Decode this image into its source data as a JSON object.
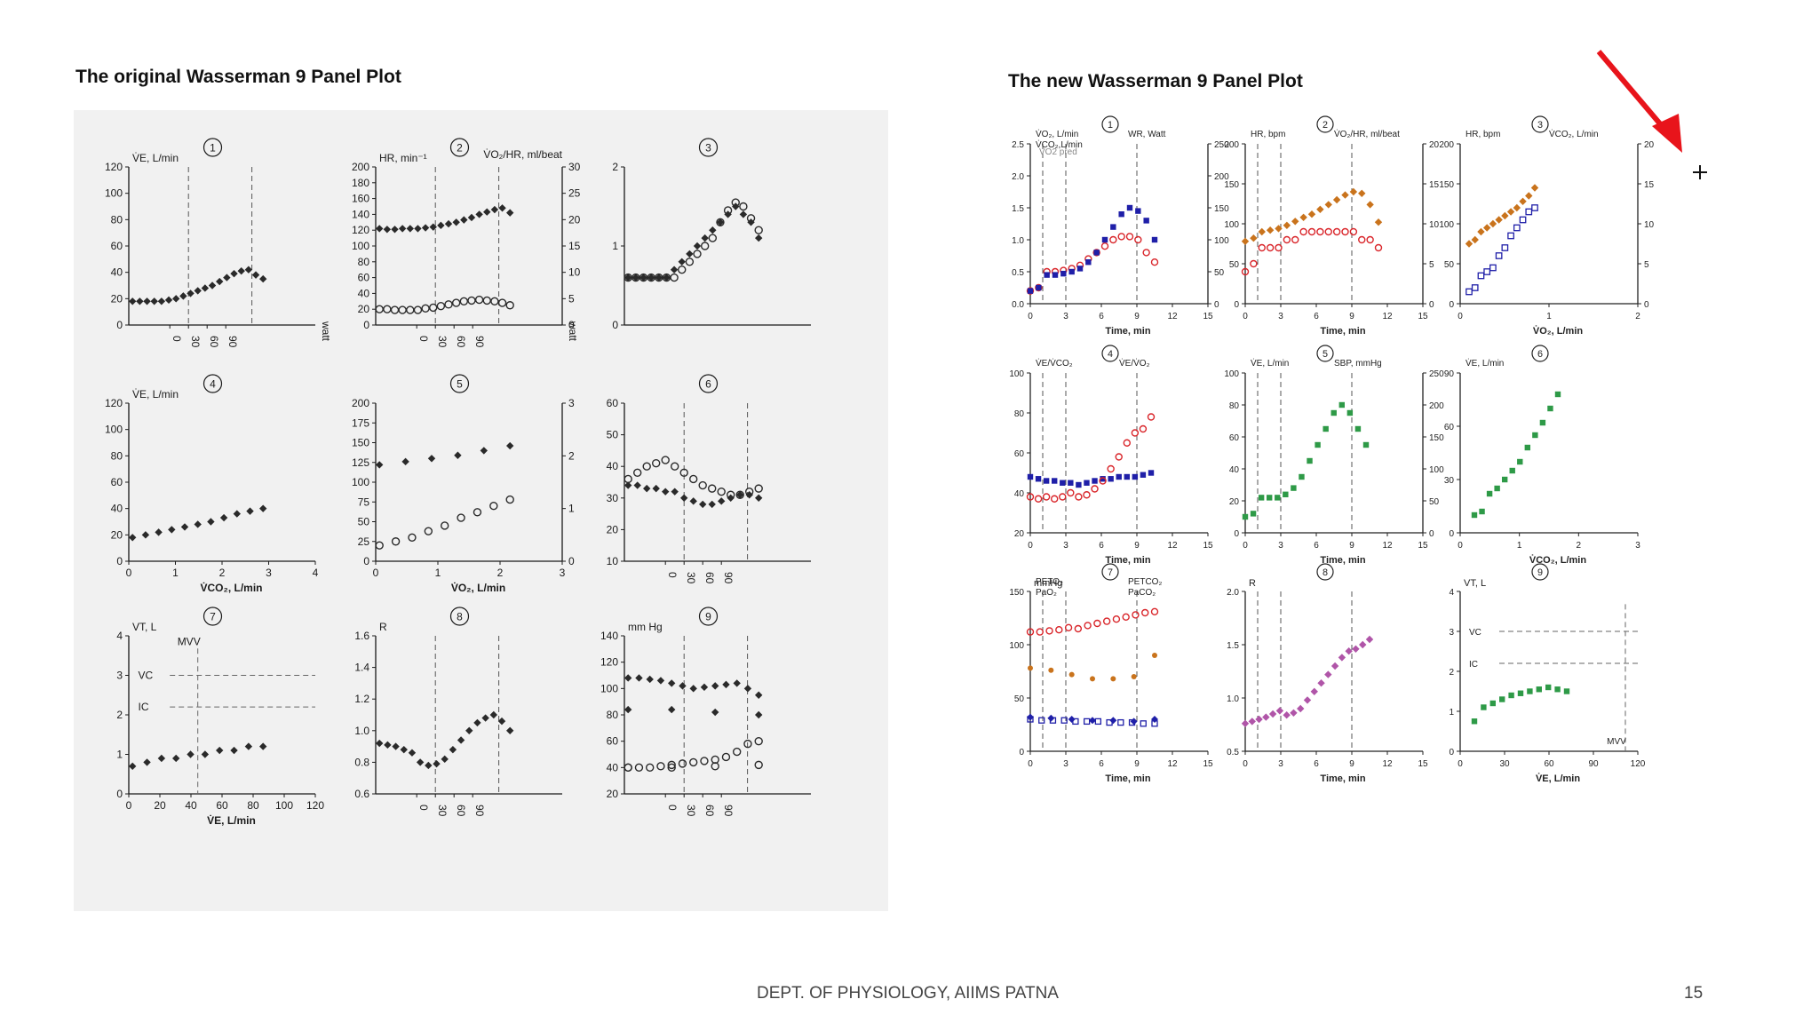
{
  "slide": {
    "left_title": "The original Wasserman 9 Panel Plot",
    "right_title": "The new Wasserman 9 Panel Plot",
    "footer": "DEPT. OF PHYSIOLOGY, AIIMS PATNA",
    "page_number": "15"
  },
  "colors": {
    "arrow": "#e8141b",
    "red_marker": "#d9252a",
    "blue_marker": "#1f1fa8",
    "orange_marker": "#c9731c",
    "green_marker": "#2e9a47",
    "purple_marker": "#b055a8",
    "grey_marker": "#333333"
  },
  "chart_data": [
    {
      "figure": "original",
      "panel": "1",
      "type": "scatter",
      "ylabel": "V̇E, L/min",
      "yticks": [
        "0",
        "20",
        "40",
        "60",
        "80",
        "100",
        "120"
      ],
      "xticks": [
        "0",
        "30",
        "60",
        "90"
      ],
      "right_label": "watt",
      "ylim": [
        0,
        120
      ],
      "series": [
        {
          "values": [
            18,
            18,
            18,
            18,
            18,
            19,
            20,
            22,
            24,
            26,
            28,
            30,
            33,
            36,
            39,
            41,
            42,
            38,
            35
          ]
        }
      ]
    },
    {
      "figure": "original",
      "panel": "2",
      "type": "scatter",
      "ylabel": "HR, min⁻¹",
      "y2label": "V̇O₂/HR, ml/beat",
      "yticks": [
        "0",
        "20",
        "40",
        "60",
        "80",
        "100",
        "120",
        "140",
        "160",
        "180",
        "200"
      ],
      "y2ticks": [
        "0",
        "5",
        "10",
        "15",
        "20",
        "25",
        "30"
      ],
      "xticks": [
        "0",
        "30",
        "60",
        "90"
      ],
      "right_label": "watt",
      "ylim": [
        0,
        200
      ],
      "series": [
        {
          "name": "HR, min⁻¹",
          "values": [
            122,
            121,
            121,
            122,
            122,
            122,
            123,
            124,
            126,
            128,
            130,
            133,
            136,
            140,
            143,
            146,
            148,
            142
          ]
        },
        {
          "name": "V̇O₂/HR, ml/beat",
          "values": [
            20,
            20,
            19,
            19,
            19,
            19,
            21,
            22,
            24,
            26,
            28,
            30,
            31,
            32,
            31,
            30,
            28,
            25
          ]
        }
      ]
    },
    {
      "figure": "original",
      "panel": "3",
      "type": "scatter",
      "yticks": [
        "0",
        "1",
        "2"
      ],
      "series": [
        {
          "name": "V̇O₂, L/min",
          "values": [
            0.6,
            0.6,
            0.6,
            0.6,
            0.6,
            0.6,
            0.7,
            0.8,
            0.9,
            1.0,
            1.1,
            1.2,
            1.3,
            1.4,
            1.5,
            1.4,
            1.3,
            1.1
          ]
        },
        {
          "name": "V̇CO₂, L/min",
          "values": [
            0.6,
            0.6,
            0.6,
            0.6,
            0.6,
            0.6,
            0.6,
            0.7,
            0.8,
            0.9,
            1.0,
            1.1,
            1.3,
            1.45,
            1.55,
            1.5,
            1.35,
            1.2
          ]
        }
      ]
    },
    {
      "figure": "original",
      "panel": "4",
      "type": "scatter",
      "ylabel": "V̇E, L/min",
      "xlabel": "V̇CO₂, L/min",
      "xticks": [
        "0",
        "1",
        "2",
        "3",
        "4"
      ],
      "yticks": [
        "0",
        "20",
        "40",
        "60",
        "80",
        "100",
        "120"
      ],
      "series": [
        {
          "values": [
            18,
            20,
            22,
            24,
            26,
            28,
            30,
            33,
            36,
            38,
            40
          ]
        }
      ]
    },
    {
      "figure": "original",
      "panel": "5",
      "type": "scatter",
      "xlabel": "V̇O₂, L/min",
      "xticks": [
        "0",
        "1",
        "2",
        "3"
      ],
      "yticks": [
        "0",
        "25",
        "50",
        "75",
        "100",
        "125",
        "150",
        "175",
        "200"
      ],
      "y2ticks": [
        "0",
        "1",
        "2",
        "3"
      ],
      "series": [
        {
          "name": "HR, min⁻¹",
          "values": [
            122,
            126,
            130,
            134,
            140,
            146
          ]
        },
        {
          "name": "V̇CO₂, L/min",
          "values": [
            20,
            25,
            30,
            38,
            45,
            55,
            62,
            70,
            78
          ]
        }
      ]
    },
    {
      "figure": "original",
      "panel": "6",
      "type": "scatter",
      "yticks": [
        "10",
        "20",
        "30",
        "40",
        "50",
        "60"
      ],
      "xticks": [
        "0",
        "30",
        "60",
        "90"
      ],
      "series": [
        {
          "name": "V̇E/V̇O₂",
          "values": [
            34,
            34,
            33,
            33,
            32,
            32,
            30,
            29,
            28,
            28,
            29,
            30,
            31,
            31,
            30
          ]
        },
        {
          "name": "V̇E/V̇CO₂",
          "values": [
            36,
            38,
            40,
            41,
            42,
            40,
            38,
            36,
            34,
            33,
            32,
            31,
            31,
            32,
            33
          ]
        }
      ]
    },
    {
      "figure": "original",
      "panel": "7",
      "type": "scatter",
      "ylabel": "VT, L",
      "xlabel": "V̇E, L/min",
      "annotations": [
        "MVV",
        "VC",
        "IC"
      ],
      "xticks": [
        "0",
        "20",
        "40",
        "60",
        "80",
        "100",
        "120"
      ],
      "yticks": [
        "0",
        "1",
        "2",
        "3",
        "4"
      ],
      "series": [
        {
          "values": [
            0.7,
            0.8,
            0.9,
            0.9,
            1.0,
            1.0,
            1.1,
            1.1,
            1.2,
            1.2
          ]
        }
      ]
    },
    {
      "figure": "original",
      "panel": "8",
      "type": "scatter",
      "ylabel": "R",
      "yticks": [
        "0.6",
        "0.8",
        "1.0",
        "1.2",
        "1.4",
        "1.6"
      ],
      "xticks": [
        "0",
        "30",
        "60",
        "90"
      ],
      "series": [
        {
          "values": [
            0.92,
            0.91,
            0.9,
            0.88,
            0.86,
            0.8,
            0.78,
            0.79,
            0.82,
            0.88,
            0.94,
            1.0,
            1.05,
            1.08,
            1.1,
            1.06,
            1.0
          ]
        }
      ]
    },
    {
      "figure": "original",
      "panel": "9",
      "type": "scatter",
      "ylabel": "mm Hg",
      "yticks": [
        "20",
        "40",
        "60",
        "80",
        "100",
        "120",
        "140"
      ],
      "xticks": [
        "0",
        "30",
        "60",
        "90"
      ],
      "series": [
        {
          "name": "PETO₂",
          "values": [
            108,
            108,
            107,
            106,
            104,
            102,
            100,
            101,
            102,
            103,
            104,
            100,
            95
          ]
        },
        {
          "name": "PETCO₂",
          "values": [
            40,
            40,
            40,
            41,
            42,
            43,
            44,
            45,
            46,
            48,
            52,
            58,
            60
          ]
        },
        {
          "name": "PaO₂",
          "values": [
            84,
            84,
            82,
            80
          ]
        },
        {
          "name": "PaCO₂",
          "values": [
            40,
            40,
            41,
            42
          ]
        }
      ]
    },
    {
      "figure": "new",
      "panel": "1",
      "type": "scatter",
      "legend": [
        "V̇O₂, L/min",
        "V̇CO₂,L/min",
        "WR, Watt"
      ],
      "annotations": [
        "VO2 pred"
      ],
      "xlabel": "Time, min",
      "xticks": [
        "0",
        "3",
        "6",
        "9",
        "12",
        "15"
      ],
      "yticks": [
        "0.0",
        "0.5",
        "1.0",
        "1.5",
        "2.0",
        "2.5"
      ],
      "y2ticks": [
        "0",
        "50",
        "100",
        "150",
        "200",
        "250"
      ],
      "series": [
        {
          "name": "V̇O₂, L/min",
          "values": [
            0.2,
            0.25,
            0.5,
            0.5,
            0.52,
            0.55,
            0.6,
            0.7,
            0.8,
            0.9,
            1.0,
            1.05,
            1.05,
            1.0,
            0.8,
            0.65
          ]
        },
        {
          "name": "V̇CO₂,L/min",
          "values": [
            0.2,
            0.25,
            0.45,
            0.45,
            0.47,
            0.5,
            0.55,
            0.65,
            0.8,
            1.0,
            1.2,
            1.4,
            1.5,
            1.45,
            1.3,
            1.0
          ]
        }
      ]
    },
    {
      "figure": "new",
      "panel": "2",
      "type": "scatter",
      "legend": [
        "HR, bpm",
        "V̇O₂/HR, ml/beat"
      ],
      "xlabel": "Time, min",
      "xticks": [
        "0",
        "3",
        "6",
        "9",
        "12",
        "15"
      ],
      "yticks": [
        "0",
        "50",
        "100",
        "150",
        "200"
      ],
      "y2ticks": [
        "0",
        "5",
        "10",
        "15",
        "20"
      ],
      "series": [
        {
          "name": "HR, bpm",
          "values": [
            78,
            82,
            90,
            92,
            94,
            98,
            103,
            108,
            112,
            118,
            124,
            130,
            136,
            140,
            138,
            124,
            102
          ]
        },
        {
          "name": "V̇O₂/HR, ml/beat",
          "values": [
            4,
            5,
            7,
            7,
            7,
            8,
            8,
            9,
            9,
            9,
            9,
            9,
            9,
            9,
            8,
            8,
            7
          ]
        }
      ]
    },
    {
      "figure": "new",
      "panel": "3",
      "type": "scatter",
      "legend": [
        "HR, bpm",
        "V̇CO₂, L/min"
      ],
      "xlabel": "V̇O₂, L/min",
      "xticks": [
        "0",
        "1",
        "2"
      ],
      "yticks": [
        "0",
        "50",
        "100",
        "150",
        "200"
      ],
      "y2ticks": [
        "0",
        "5",
        "10",
        "15",
        "20"
      ],
      "series": [
        {
          "name": "HR, bpm",
          "values": [
            75,
            80,
            90,
            95,
            100,
            105,
            110,
            115,
            120,
            128,
            135,
            145
          ]
        },
        {
          "name": "V̇CO₂, L/min",
          "values": [
            15,
            20,
            35,
            40,
            45,
            60,
            70,
            85,
            95,
            105,
            115,
            120
          ]
        }
      ]
    },
    {
      "figure": "new",
      "panel": "4",
      "type": "scatter",
      "legend": [
        "V̇E/V̇CO₂",
        "V̇E/V̇O₂"
      ],
      "xlabel": "Time, min",
      "xticks": [
        "0",
        "3",
        "6",
        "9",
        "12",
        "15"
      ],
      "yticks": [
        "20",
        "40",
        "60",
        "80",
        "100"
      ],
      "series": [
        {
          "name": "V̇E/V̇CO₂",
          "values": [
            48,
            47,
            46,
            46,
            45,
            45,
            44,
            45,
            46,
            47,
            47,
            48,
            48,
            48,
            49,
            50
          ]
        },
        {
          "name": "V̇E/V̇O₂",
          "values": [
            38,
            37,
            38,
            37,
            38,
            40,
            38,
            39,
            42,
            46,
            52,
            58,
            65,
            70,
            72,
            78
          ]
        }
      ]
    },
    {
      "figure": "new",
      "panel": "5",
      "type": "scatter",
      "legend": [
        "V̇E, L/min",
        "SBP, mmHg"
      ],
      "xlabel": "Time, min",
      "xticks": [
        "0",
        "3",
        "6",
        "9",
        "12",
        "15"
      ],
      "yticks": [
        "0",
        "20",
        "40",
        "60",
        "80",
        "100"
      ],
      "y2ticks": [
        "0",
        "50",
        "100",
        "150",
        "200",
        "250"
      ],
      "series": [
        {
          "name": "V̇E, L/min",
          "values": [
            10,
            12,
            22,
            22,
            22,
            24,
            28,
            35,
            45,
            55,
            65,
            75,
            80,
            75,
            65,
            55
          ]
        },
        {
          "name": "SBP, mmHg",
          "values": [
            150,
            145,
            165,
            175,
            230,
            240,
            230
          ]
        }
      ]
    },
    {
      "figure": "new",
      "panel": "6",
      "type": "scatter",
      "legend": [
        "V̇E, L/min"
      ],
      "xlabel": "V̇CO₂, L/min",
      "xticks": [
        "0",
        "1",
        "2",
        "3"
      ],
      "yticks": [
        "0",
        "30",
        "60",
        "90"
      ],
      "series": [
        {
          "values": [
            10,
            12,
            22,
            25,
            30,
            35,
            40,
            48,
            55,
            62,
            70,
            78
          ]
        }
      ]
    },
    {
      "figure": "new",
      "panel": "7",
      "type": "scatter",
      "ylabel": "mmHg",
      "legend": [
        "PETO₂",
        "PaO₂",
        "PETCO₂",
        "PaCO₂"
      ],
      "xlabel": "Time, min",
      "xticks": [
        "0",
        "3",
        "6",
        "9",
        "12",
        "15"
      ],
      "yticks": [
        "0",
        "50",
        "100",
        "150"
      ],
      "series": [
        {
          "name": "PETO₂",
          "values": [
            112,
            112,
            113,
            114,
            116,
            115,
            118,
            120,
            122,
            124,
            126,
            128,
            130,
            131
          ]
        },
        {
          "name": "PaO₂",
          "values": [
            78,
            76,
            72,
            68,
            68,
            70,
            90
          ]
        },
        {
          "name": "PETCO₂",
          "values": [
            30,
            29,
            29,
            29,
            28,
            28,
            28,
            27,
            27,
            27,
            26,
            26
          ]
        },
        {
          "name": "PaCO₂",
          "values": [
            32,
            31,
            30,
            29,
            29,
            28,
            30
          ]
        }
      ]
    },
    {
      "figure": "new",
      "panel": "8",
      "type": "scatter",
      "ylabel": "R",
      "xlabel": "Time, min",
      "xticks": [
        "0",
        "3",
        "6",
        "9",
        "12",
        "15"
      ],
      "yticks": [
        "0.5",
        "1.0",
        "1.5",
        "2.0"
      ],
      "series": [
        {
          "values": [
            0.76,
            0.78,
            0.8,
            0.82,
            0.85,
            0.88,
            0.84,
            0.86,
            0.9,
            0.98,
            1.06,
            1.14,
            1.22,
            1.3,
            1.38,
            1.44,
            1.46,
            1.5,
            1.55
          ]
        }
      ]
    },
    {
      "figure": "new",
      "panel": "9",
      "type": "scatter",
      "ylabel": "VT, L",
      "xlabel": "V̇E, L/min",
      "annotations": [
        "VC",
        "IC",
        "MVV"
      ],
      "xticks": [
        "0",
        "30",
        "60",
        "90",
        "120"
      ],
      "yticks": [
        "0",
        "1",
        "2",
        "3",
        "4"
      ],
      "series": [
        {
          "values": [
            0.75,
            1.1,
            1.2,
            1.3,
            1.4,
            1.45,
            1.5,
            1.55,
            1.6,
            1.55,
            1.5
          ]
        }
      ]
    }
  ]
}
